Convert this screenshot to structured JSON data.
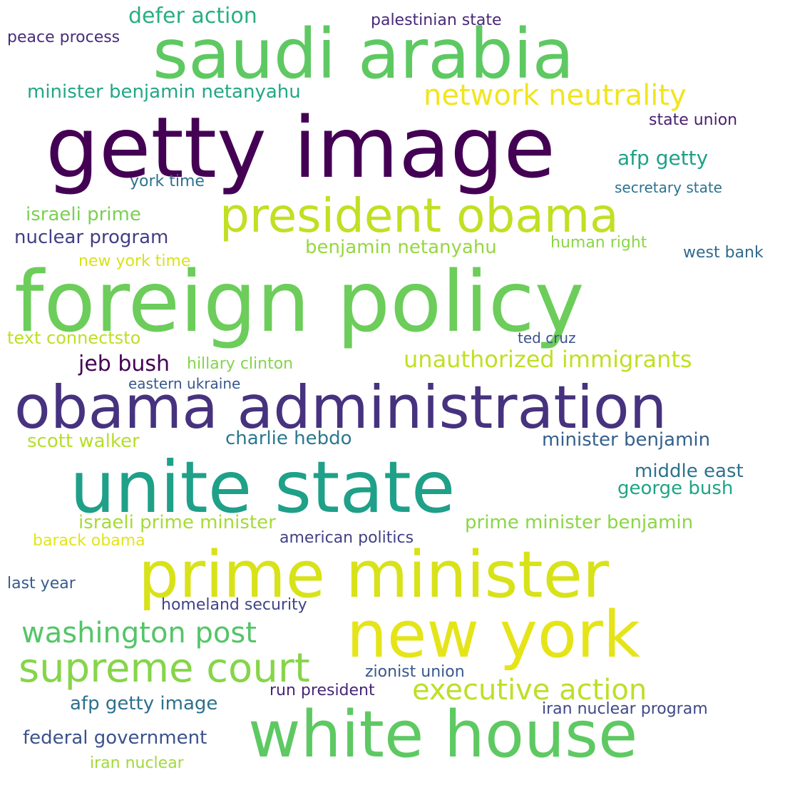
{
  "words": [
    {
      "text": "getty image",
      "color": "#440154"
    },
    {
      "text": "foreign policy",
      "color": "#6ccd5a"
    },
    {
      "text": "saudi arabia",
      "color": "#5ec962"
    },
    {
      "text": "obama administration",
      "color": "#46327e"
    },
    {
      "text": "unite state",
      "color": "#1fa088"
    },
    {
      "text": "prime minister",
      "color": "#d8e219"
    },
    {
      "text": "new york",
      "color": "#e5e419"
    },
    {
      "text": "white house",
      "color": "#5ec962"
    },
    {
      "text": "president obama",
      "color": "#c2df23"
    },
    {
      "text": "supreme court",
      "color": "#86d549"
    },
    {
      "text": "network neutrality",
      "color": "#f1e51d"
    },
    {
      "text": "washington post",
      "color": "#54c568"
    },
    {
      "text": "executive action",
      "color": "#bddf26"
    },
    {
      "text": "unauthorized immigrants",
      "color": "#c2df23"
    },
    {
      "text": "defer action",
      "color": "#29af7f"
    },
    {
      "text": "minister benjamin netanyahu",
      "color": "#22a785"
    },
    {
      "text": "israeli prime",
      "color": "#7ad151"
    },
    {
      "text": "benjamin netanyahu",
      "color": "#95d840"
    },
    {
      "text": "nuclear program",
      "color": "#433e85"
    },
    {
      "text": "jeb bush",
      "color": "#440154"
    },
    {
      "text": "afp getty",
      "color": "#1fa088"
    },
    {
      "text": "scott walker",
      "color": "#b5de2b"
    },
    {
      "text": "charlie hebdo",
      "color": "#2a788e"
    },
    {
      "text": "minister benjamin",
      "color": "#35608d"
    },
    {
      "text": "middle east",
      "color": "#2c728e"
    },
    {
      "text": "george bush",
      "color": "#20a386"
    },
    {
      "text": "israeli prime minister",
      "color": "#a5db36"
    },
    {
      "text": "prime minister benjamin",
      "color": "#8bd646"
    },
    {
      "text": "federal government",
      "color": "#3b528b"
    },
    {
      "text": "afp getty image",
      "color": "#2d708e"
    },
    {
      "text": "iran nuclear program",
      "color": "#3e4989"
    },
    {
      "text": "palestinian state",
      "color": "#482878"
    },
    {
      "text": "state union",
      "color": "#481f70"
    },
    {
      "text": "york time",
      "color": "#2c728e"
    },
    {
      "text": "secretary state",
      "color": "#2c728e"
    },
    {
      "text": "human right",
      "color": "#8bd646"
    },
    {
      "text": "west bank",
      "color": "#306a8e"
    },
    {
      "text": "new york time",
      "color": "#d8e219"
    },
    {
      "text": "text connectsto",
      "color": "#bddf26"
    },
    {
      "text": "hillary clinton",
      "color": "#84d44b"
    },
    {
      "text": "eastern ukraine",
      "color": "#38588c"
    },
    {
      "text": "ted cruz",
      "color": "#3b528b"
    },
    {
      "text": "barack obama",
      "color": "#e2e418"
    },
    {
      "text": "american politics",
      "color": "#424086"
    },
    {
      "text": "last year",
      "color": "#365c8d"
    },
    {
      "text": "homeland security",
      "color": "#414487"
    },
    {
      "text": "zionist union",
      "color": "#38588c"
    },
    {
      "text": "run president",
      "color": "#482576"
    },
    {
      "text": "iran nuclear",
      "color": "#a0da39"
    },
    {
      "text": "peace process",
      "color": "#472c7a"
    }
  ]
}
